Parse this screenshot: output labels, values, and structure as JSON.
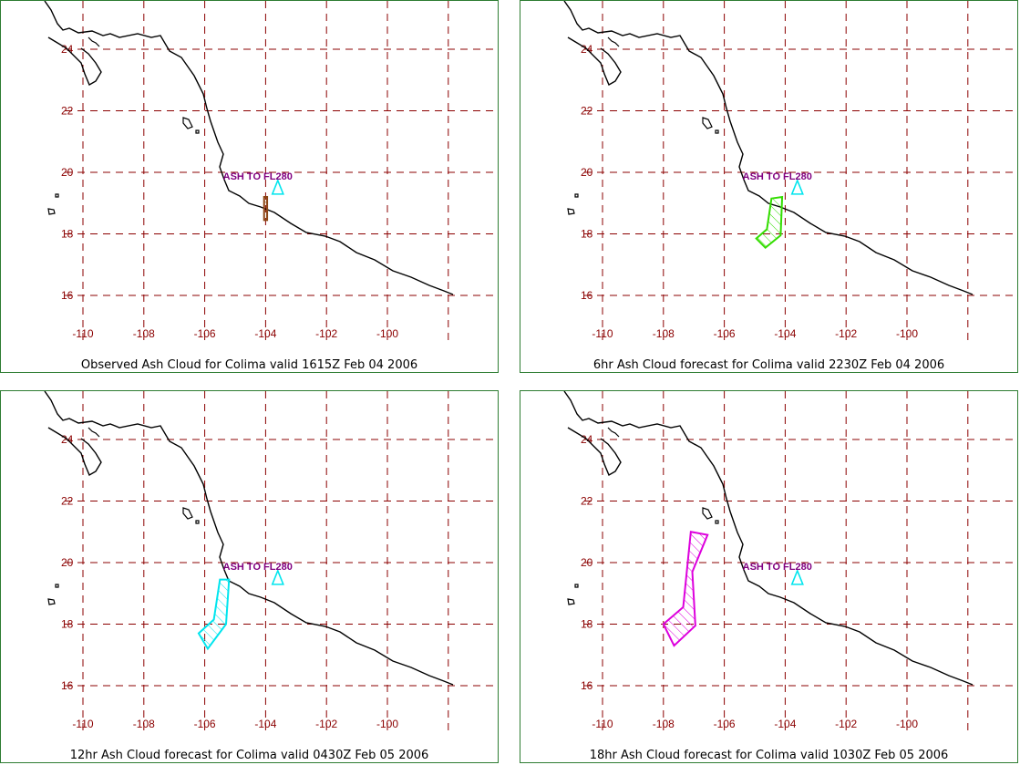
{
  "colors": {
    "frame": "#2e7d32",
    "grid": "#8b0000",
    "tick_label": "#8b0000",
    "coast": "#000000",
    "volcano_icon": "#00e5ee",
    "flight_level_label": "#800080"
  },
  "map": {
    "x_tick_labels": [
      "-110",
      "-108",
      "-106",
      "-104",
      "-102",
      "-100"
    ],
    "y_tick_labels": [
      "24",
      "22",
      "20",
      "18",
      "16"
    ],
    "volcano": {
      "lon": -103.6,
      "lat": 19.5,
      "icon": "volcano-triangle-icon"
    },
    "flight_level_label": "ASH TO FL280"
  },
  "panels": [
    {
      "caption": "Observed Ash Cloud for Colima valid 1615Z Feb 04 2006",
      "ash_color": "#8b4513",
      "ash_polygon": [
        [
          -104.05,
          19.2
        ],
        [
          -103.95,
          19.2
        ],
        [
          -103.95,
          18.45
        ],
        [
          -104.05,
          18.45
        ]
      ]
    },
    {
      "caption": "6hr Ash Cloud forecast for Colima valid 2230Z Feb 04 2006",
      "ash_color": "#33dd00",
      "ash_polygon": [
        [
          -104.45,
          19.15
        ],
        [
          -104.1,
          19.2
        ],
        [
          -104.15,
          17.95
        ],
        [
          -104.65,
          17.55
        ],
        [
          -104.95,
          17.85
        ],
        [
          -104.6,
          18.15
        ]
      ]
    },
    {
      "caption": "12hr Ash Cloud forecast for Colima valid 0430Z Feb 05 2006",
      "ash_color": "#00e5ee",
      "ash_polygon": [
        [
          -105.5,
          19.45
        ],
        [
          -105.2,
          19.45
        ],
        [
          -105.3,
          18.0
        ],
        [
          -105.9,
          17.2
        ],
        [
          -106.2,
          17.7
        ],
        [
          -105.7,
          18.15
        ]
      ]
    },
    {
      "caption": "18hr Ash Cloud forecast for Colima valid 1030Z Feb 05 2006",
      "ash_color": "#dd00dd",
      "ash_polygon": [
        [
          -107.1,
          21.0
        ],
        [
          -106.55,
          20.9
        ],
        [
          -107.05,
          19.7
        ],
        [
          -106.95,
          17.95
        ],
        [
          -107.65,
          17.3
        ],
        [
          -108.0,
          18.0
        ],
        [
          -107.35,
          18.55
        ]
      ]
    }
  ]
}
